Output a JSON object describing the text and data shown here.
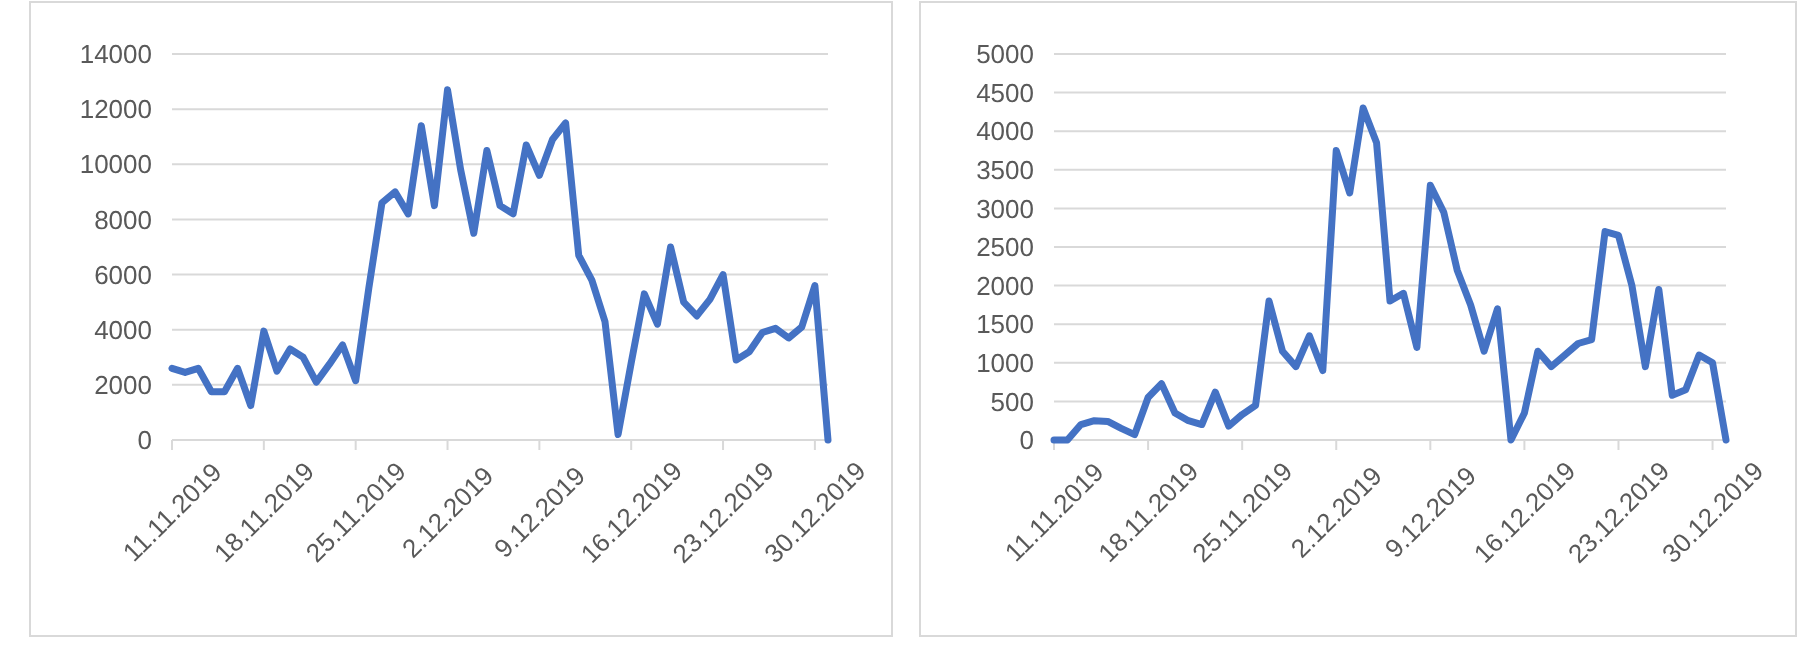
{
  "chart_data": [
    {
      "type": "line",
      "categories": [
        "11.11.2019",
        null,
        null,
        null,
        null,
        null,
        null,
        "18.11.2019",
        null,
        null,
        null,
        null,
        null,
        null,
        "25.11.2019",
        null,
        null,
        null,
        null,
        null,
        null,
        "2.12.2019",
        null,
        null,
        null,
        null,
        null,
        null,
        "9.12.2019",
        null,
        null,
        null,
        null,
        null,
        null,
        "16.12.2019",
        null,
        null,
        null,
        null,
        null,
        null,
        "23.12.2019",
        null,
        null,
        null,
        null,
        null,
        null,
        "30.12.2019",
        null
      ],
      "series": [
        {
          "color": "#4472c4",
          "values": [
            2600,
            2450,
            2600,
            1750,
            1750,
            2600,
            1250,
            3950,
            2500,
            3300,
            3000,
            2100,
            2750,
            3450,
            2150,
            5500,
            8600,
            9000,
            8200,
            11400,
            8500,
            12700,
            9800,
            7500,
            10500,
            8500,
            8200,
            10700,
            9600,
            10900,
            11500,
            6700,
            5800,
            4300,
            200,
            2800,
            5300,
            4200,
            7000,
            5000,
            4500,
            5100,
            6000,
            2900,
            3200,
            3900,
            4050,
            3700,
            4100,
            5600,
            0
          ]
        }
      ],
      "ylim": [
        0,
        14000
      ],
      "yticks": [
        0,
        2000,
        4000,
        6000,
        8000,
        10000,
        12000,
        14000
      ],
      "grid": "y",
      "marker": "none",
      "line_style": "solid"
    },
    {
      "type": "line",
      "categories": [
        "11.11.2019",
        null,
        null,
        null,
        null,
        null,
        null,
        "18.11.2019",
        null,
        null,
        null,
        null,
        null,
        null,
        "25.11.2019",
        null,
        null,
        null,
        null,
        null,
        null,
        "2.12.2019",
        null,
        null,
        null,
        null,
        null,
        null,
        "9.12.2019",
        null,
        null,
        null,
        null,
        null,
        null,
        "16.12.2019",
        null,
        null,
        null,
        null,
        null,
        null,
        "23.12.2019",
        null,
        null,
        null,
        null,
        null,
        null,
        "30.12.2019",
        null
      ],
      "series": [
        {
          "color": "#4472c4",
          "values": [
            0,
            0,
            200,
            250,
            240,
            150,
            70,
            550,
            730,
            350,
            250,
            200,
            620,
            180,
            330,
            450,
            1800,
            1150,
            950,
            1350,
            900,
            3750,
            3200,
            4300,
            3850,
            1800,
            1900,
            1200,
            3300,
            2950,
            2200,
            1750,
            1150,
            1700,
            0,
            350,
            1150,
            950,
            1100,
            1250,
            1300,
            2700,
            2650,
            2000,
            950,
            1950,
            580,
            650,
            1100,
            1000,
            0
          ]
        }
      ],
      "ylim": [
        0,
        5000
      ],
      "yticks": [
        0,
        500,
        1000,
        1500,
        2000,
        2500,
        3000,
        3500,
        4000,
        4500,
        5000
      ],
      "grid": "y",
      "marker": "none",
      "line_style": "solid"
    }
  ]
}
